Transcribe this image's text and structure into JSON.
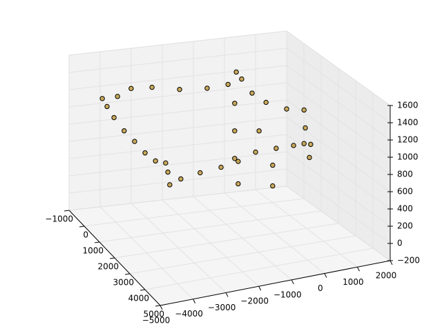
{
  "chart_data": {
    "type": "scatter3d",
    "x": [
      -4910,
      -4760,
      -4540,
      -4220,
      -3890,
      -3560,
      -3230,
      -2910,
      -2840,
      -2780,
      -2430,
      -1820,
      -1160,
      -620,
      -70,
      580,
      1130,
      1460,
      1670,
      1630,
      1500,
      1460,
      910,
      260,
      -180,
      -510,
      -680,
      -940,
      -1600,
      -2470,
      -3340,
      -4000,
      -4430,
      -730,
      -730,
      -730,
      470,
      470,
      -620,
      40
    ],
    "y": [
      1000,
      1000,
      1000,
      1000,
      1000,
      1000,
      1000,
      1000,
      1000,
      1000,
      1000,
      1000,
      1000,
      1000,
      1000,
      1000,
      1000,
      1000,
      1000,
      1000,
      1000,
      1000,
      1000,
      1000,
      1000,
      1000,
      1000,
      1000,
      1000,
      1000,
      1000,
      1000,
      1000,
      1000,
      1000,
      1000,
      1000,
      1000,
      1000,
      1000
    ],
    "z": [
      1460,
      1360,
      1220,
      1050,
      910,
      760,
      650,
      610,
      500,
      350,
      400,
      440,
      470,
      510,
      590,
      600,
      605,
      610,
      590,
      440,
      790,
      1000,
      1040,
      1150,
      1280,
      1460,
      1550,
      1420,
      1410,
      1440,
      1510,
      1530,
      1460,
      1190,
      870,
      550,
      410,
      170,
      250,
      830
    ],
    "color": "#c8a85a",
    "xlim": [
      -5000,
      2000
    ],
    "ylim": [
      -1000,
      5000
    ],
    "zlim": [
      -200,
      1600
    ],
    "xticks": [
      {
        "value": -5000,
        "label": "−5000"
      },
      {
        "value": -4000,
        "label": "−4000"
      },
      {
        "value": -3000,
        "label": "−3000"
      },
      {
        "value": -2000,
        "label": "−2000"
      },
      {
        "value": -1000,
        "label": "−1000"
      },
      0,
      1000,
      2000
    ],
    "yticks": [
      {
        "value": -1000,
        "label": "−1000"
      },
      0,
      1000,
      2000,
      3000,
      4000,
      5000
    ],
    "zticks": [
      {
        "value": -200,
        "label": "−200"
      },
      0,
      200,
      400,
      600,
      800,
      1000,
      1200,
      1400,
      1600
    ],
    "grid": true
  }
}
